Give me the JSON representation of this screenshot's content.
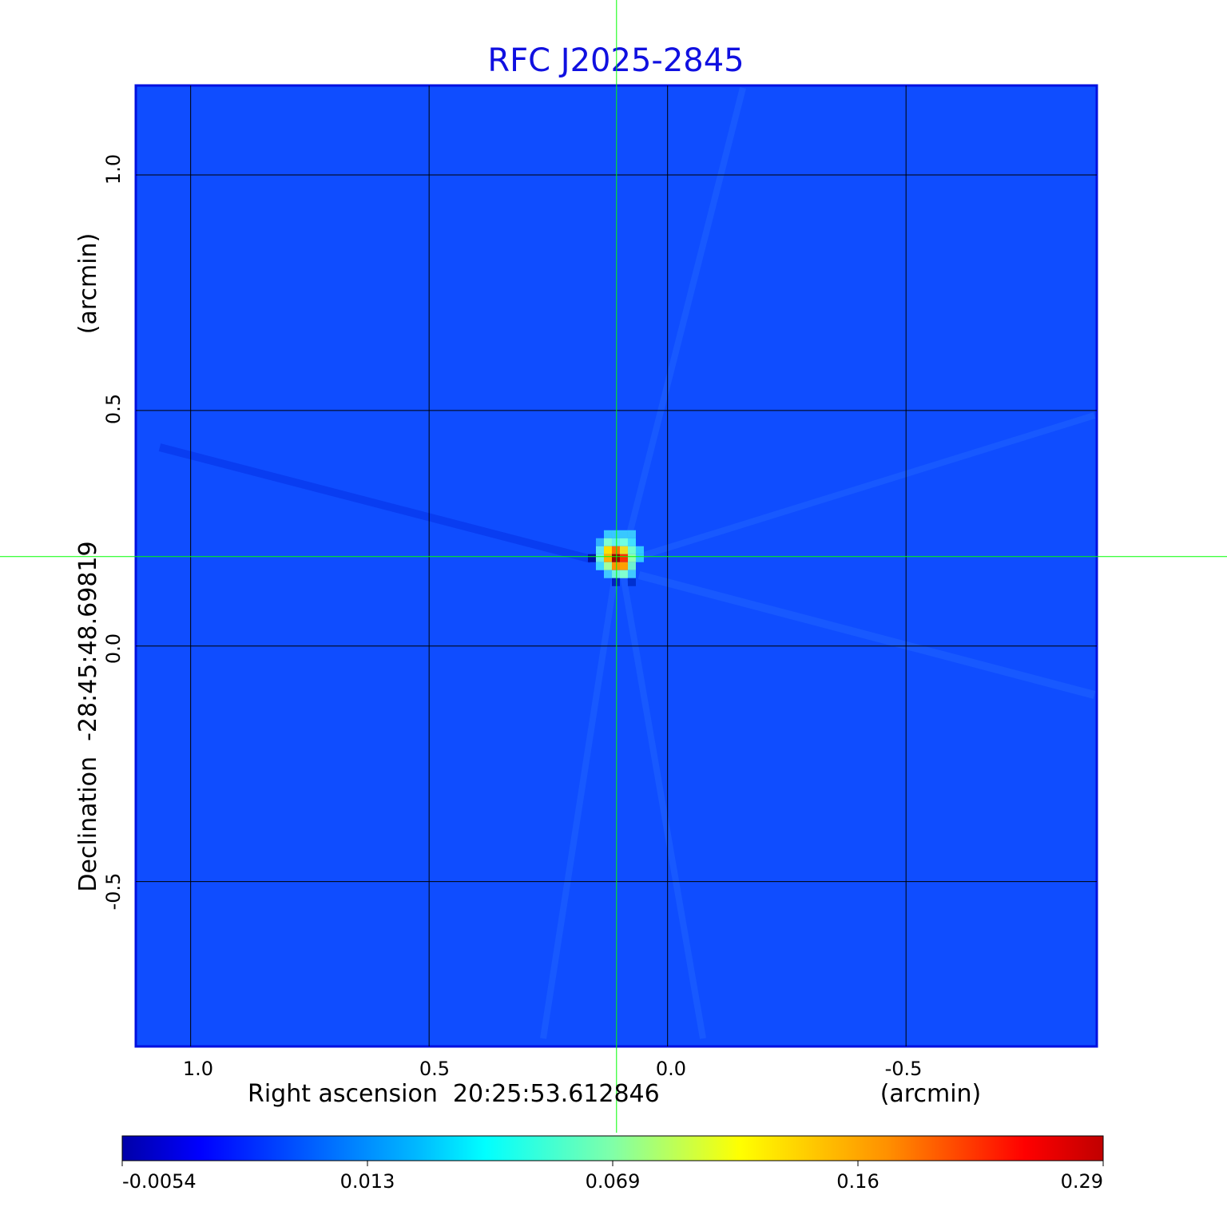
{
  "chart_data": {
    "type": "heatmap",
    "title": "RFC J2025-2845",
    "title_color": "#1010e0",
    "xlabel": "Right ascension  20:25:53.612846",
    "xunit": "(arcmin)",
    "ylabel": "Declination  -28:45:48.69819",
    "yunit": "(arcmin)",
    "x_ticks": [
      1.0,
      0.5,
      0.0,
      -0.5
    ],
    "x_tick_labels": [
      "1.0",
      "0.5",
      "0.0",
      "-0.5"
    ],
    "y_ticks": [
      1.0,
      0.5,
      0.0,
      -0.5
    ],
    "y_tick_labels": [
      "1.0",
      "0.5",
      "0.0",
      "-0.5"
    ],
    "xlim": [
      1.115,
      -0.9
    ],
    "ylim": [
      -0.85,
      1.19
    ],
    "grid": true,
    "crosshair": {
      "x": 0.107,
      "y": 0.19,
      "color": "#00ff00"
    },
    "source_peak": {
      "x": 0.1,
      "y": 0.195
    },
    "colormap": "jet",
    "background_color": "#0f4dff",
    "colorbar": {
      "location": "bottom",
      "tick_labels": [
        "-0.0054",
        "0.013",
        "0.069",
        "0.16",
        "0.29"
      ],
      "min": -0.0054,
      "max": 0.29
    }
  }
}
